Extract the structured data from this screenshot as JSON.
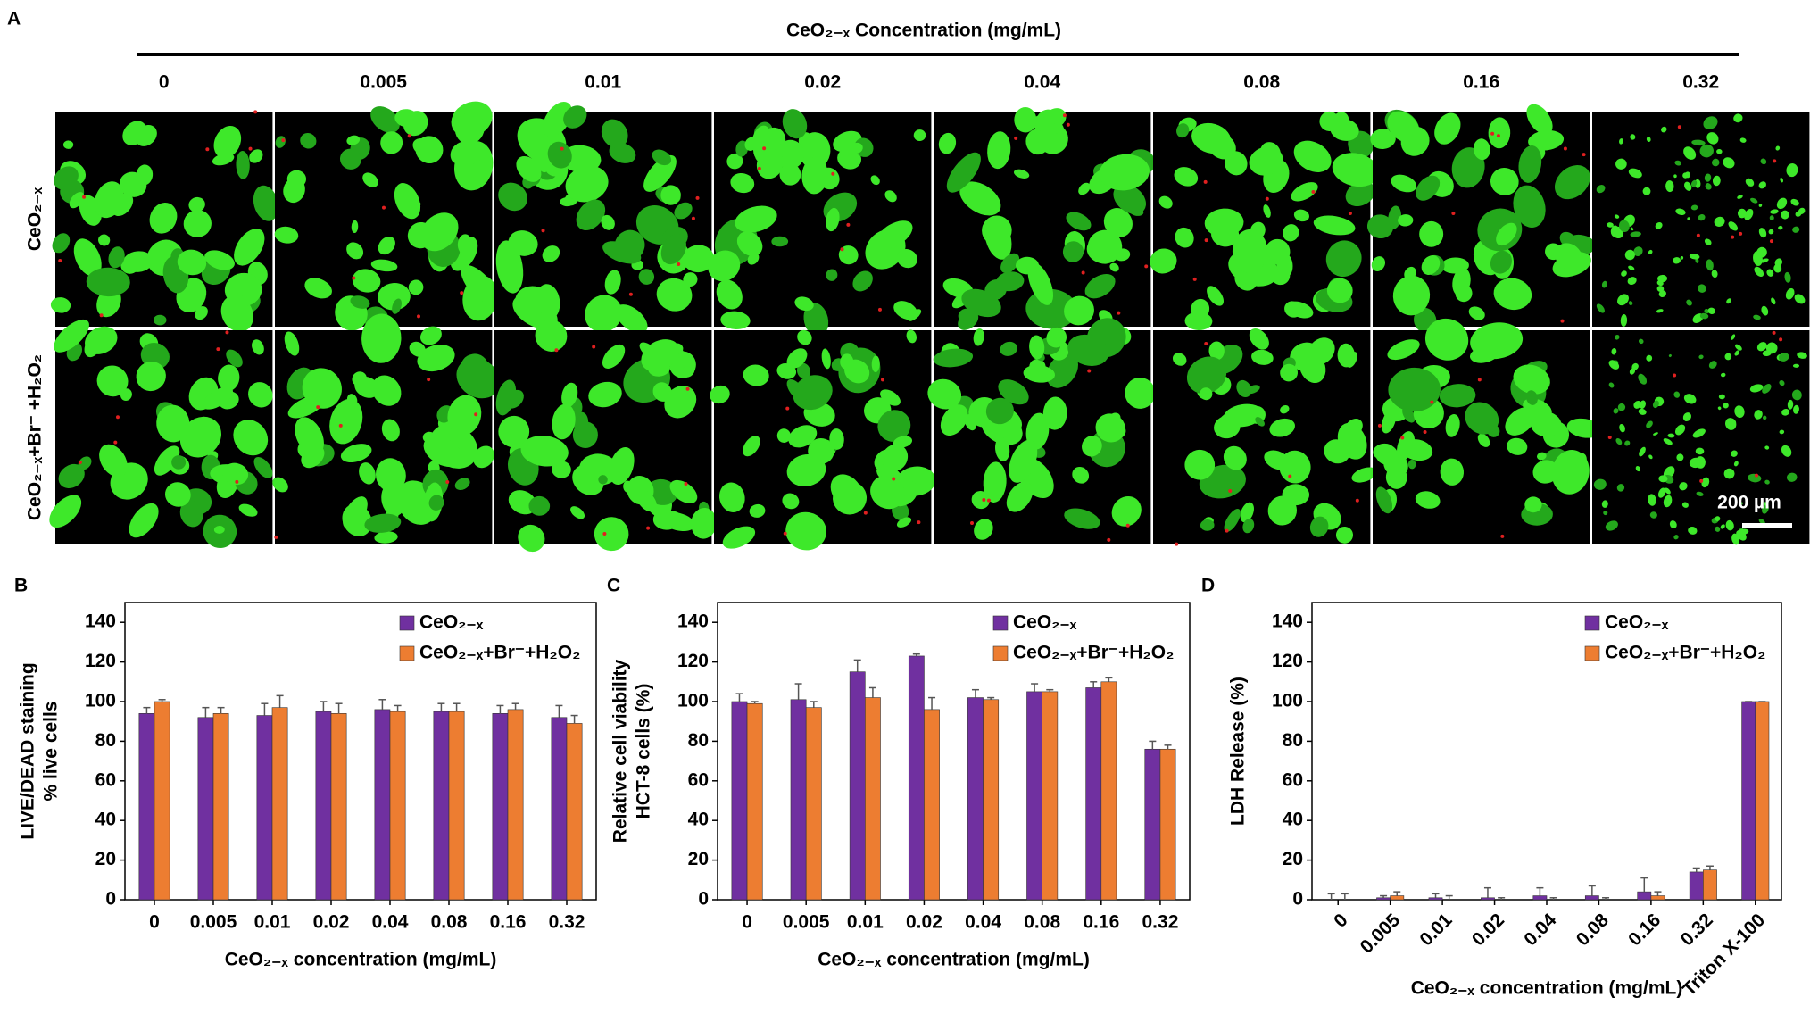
{
  "panel_a": {
    "label": "A",
    "title": "CeO₂₋ₓ Concentration (mg/mL)",
    "columns": [
      "0",
      "0.005",
      "0.01",
      "0.02",
      "0.04",
      "0.08",
      "0.16",
      "0.32"
    ],
    "rows": [
      "CeO₂₋ₓ",
      "CeO₂₋ₓ+Br⁻ +H₂O₂"
    ],
    "scale_bar": "200 µm"
  },
  "chart_data": [
    {
      "type": "bar",
      "label": "B",
      "ylabel": [
        "LIVE/DEAD staining",
        "% live cells"
      ],
      "xlabel": "CeO₂₋ₓ concentration (mg/mL)",
      "categories": [
        "0",
        "0.005",
        "0.01",
        "0.02",
        "0.04",
        "0.08",
        "0.16",
        "0.32"
      ],
      "series": [
        {
          "name": "CeO₂₋ₓ",
          "color": "#7030a0",
          "values": [
            94,
            92,
            93,
            95,
            96,
            95,
            94,
            92
          ],
          "errors": [
            3,
            5,
            6,
            5,
            5,
            4,
            4,
            6
          ]
        },
        {
          "name": "CeO₂₋ₓ+Br⁻+H₂O₂",
          "color": "#ed7d31",
          "values": [
            100,
            94,
            97,
            94,
            95,
            95,
            96,
            89
          ],
          "errors": [
            1,
            3,
            6,
            5,
            3,
            4,
            3,
            4
          ]
        }
      ],
      "ylim": [
        0,
        150
      ],
      "yticks": [
        0,
        20,
        40,
        60,
        80,
        100,
        120,
        140
      ],
      "legend": "top-right"
    },
    {
      "type": "bar",
      "label": "C",
      "ylabel": [
        "Relative cell viability",
        "HCT-8 cells (%)"
      ],
      "xlabel": "CeO₂₋ₓ concentration (mg/mL)",
      "categories": [
        "0",
        "0.005",
        "0.01",
        "0.02",
        "0.04",
        "0.08",
        "0.16",
        "0.32"
      ],
      "series": [
        {
          "name": "CeO₂₋ₓ",
          "color": "#7030a0",
          "values": [
            100,
            101,
            115,
            123,
            102,
            105,
            107,
            76
          ],
          "errors": [
            4,
            8,
            6,
            1,
            4,
            4,
            3,
            4
          ]
        },
        {
          "name": "CeO₂₋ₓ+Br⁻+H₂O₂",
          "color": "#ed7d31",
          "values": [
            99,
            97,
            102,
            96,
            101,
            105,
            110,
            76
          ],
          "errors": [
            1,
            3,
            5,
            6,
            1,
            1,
            2,
            2
          ]
        }
      ],
      "ylim": [
        0,
        150
      ],
      "yticks": [
        0,
        20,
        40,
        60,
        80,
        100,
        120,
        140
      ],
      "legend": "top-right"
    },
    {
      "type": "bar",
      "label": "D",
      "ylabel": [
        "LDH Release (%)"
      ],
      "xlabel": "CeO₂₋ₓ concentration (mg/mL)",
      "categories": [
        "0",
        "0.005",
        "0.01",
        "0.02",
        "0.04",
        "0.08",
        "0.16",
        "0.32",
        "Triton X-100"
      ],
      "series": [
        {
          "name": "CeO₂₋ₓ",
          "color": "#7030a0",
          "values": [
            0,
            1,
            1,
            1,
            2,
            2,
            4,
            14,
            100
          ],
          "errors": [
            3,
            1,
            2,
            5,
            4,
            5,
            7,
            2,
            0
          ]
        },
        {
          "name": "CeO₂₋ₓ+Br⁻+H₂O₂",
          "color": "#ed7d31",
          "values": [
            0,
            2,
            0,
            0,
            0,
            0,
            2,
            15,
            100
          ],
          "errors": [
            3,
            2,
            2,
            1,
            1,
            1,
            2,
            2,
            0
          ]
        }
      ],
      "ylim": [
        0,
        150
      ],
      "yticks": [
        0,
        20,
        40,
        60,
        80,
        100,
        120,
        140
      ],
      "legend": "top-right",
      "xtick_rotation": -45
    }
  ]
}
